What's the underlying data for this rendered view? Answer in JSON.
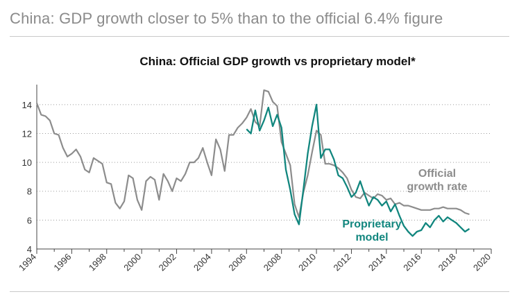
{
  "page_title": "China: GDP growth closer to 5% than to the official 6.4% figure",
  "chart_data": {
    "type": "line",
    "title": "China: Official GDP growth vs proprietary model*",
    "xlabel": "",
    "ylabel": "",
    "xlim": [
      1994,
      2020
    ],
    "ylim": [
      4,
      15
    ],
    "x_ticks": [
      1994,
      1996,
      1998,
      2000,
      2002,
      2004,
      2006,
      2008,
      2010,
      2012,
      2014,
      2016,
      2018,
      2020
    ],
    "x_tick_labels": [
      "1994",
      "1996",
      "1998",
      "2000",
      "2002",
      "2004",
      "2006",
      "2008",
      "2010",
      "2012",
      "2014",
      "2016",
      "2018",
      "2020"
    ],
    "y_ticks": [
      4,
      6,
      8,
      10,
      12,
      14
    ],
    "y_tick_labels": [
      "4",
      "6",
      "8",
      "10",
      "12",
      "14"
    ],
    "grid": "horizontal-dotted",
    "series": [
      {
        "name": "Official growth rate",
        "label_lines": [
          "Official",
          "growth rate"
        ],
        "color": "#8c8c8c",
        "x": [
          1994.0,
          1994.25,
          1994.5,
          1994.75,
          1995.0,
          1995.25,
          1995.5,
          1995.75,
          1996.0,
          1996.25,
          1996.5,
          1996.75,
          1997.0,
          1997.25,
          1997.5,
          1997.75,
          1998.0,
          1998.25,
          1998.5,
          1998.75,
          1999.0,
          1999.25,
          1999.5,
          1999.75,
          2000.0,
          2000.25,
          2000.5,
          2000.75,
          2001.0,
          2001.25,
          2001.5,
          2001.75,
          2002.0,
          2002.25,
          2002.5,
          2002.75,
          2003.0,
          2003.25,
          2003.5,
          2003.75,
          2004.0,
          2004.25,
          2004.5,
          2004.75,
          2005.0,
          2005.25,
          2005.5,
          2005.75,
          2006.0,
          2006.25,
          2006.5,
          2006.75,
          2007.0,
          2007.25,
          2007.5,
          2007.75,
          2008.0,
          2008.25,
          2008.5,
          2008.75,
          2009.0,
          2009.25,
          2009.5,
          2009.75,
          2010.0,
          2010.25,
          2010.5,
          2010.75,
          2011.0,
          2011.25,
          2011.5,
          2011.75,
          2012.0,
          2012.25,
          2012.5,
          2012.75,
          2013.0,
          2013.25,
          2013.5,
          2013.75,
          2014.0,
          2014.25,
          2014.5,
          2014.75,
          2015.0,
          2015.25,
          2015.5,
          2015.75,
          2016.0,
          2016.25,
          2016.5,
          2016.75,
          2017.0,
          2017.25,
          2017.5,
          2017.75,
          2018.0,
          2018.25,
          2018.5,
          2018.75
        ],
        "values": [
          14.1,
          13.3,
          13.2,
          12.9,
          12.0,
          11.9,
          11.0,
          10.4,
          10.6,
          10.9,
          10.4,
          9.5,
          9.3,
          10.3,
          10.1,
          9.9,
          8.6,
          8.5,
          7.2,
          6.8,
          7.3,
          9.1,
          8.9,
          7.4,
          6.7,
          8.7,
          9.0,
          8.8,
          7.4,
          9.2,
          8.7,
          8.0,
          8.9,
          8.7,
          9.2,
          10.0,
          10.0,
          10.3,
          11.0,
          10.0,
          9.1,
          11.6,
          10.9,
          9.4,
          11.9,
          11.9,
          12.4,
          12.7,
          13.1,
          13.7,
          12.8,
          12.5,
          15.0,
          14.9,
          14.2,
          13.9,
          11.4,
          10.6,
          9.8,
          7.1,
          6.2,
          7.9,
          9.1,
          10.7,
          12.2,
          11.9,
          9.9,
          9.9,
          9.8,
          9.6,
          9.3,
          8.9,
          8.1,
          7.6,
          7.5,
          7.9,
          7.7,
          7.5,
          7.8,
          7.7,
          7.4,
          7.5,
          7.1,
          7.2,
          7.0,
          7.0,
          6.9,
          6.8,
          6.7,
          6.7,
          6.7,
          6.8,
          6.8,
          6.9,
          6.8,
          6.8,
          6.8,
          6.7,
          6.5,
          6.4
        ]
      },
      {
        "name": "Proprietary model",
        "label_lines": [
          "Proprietary",
          "model"
        ],
        "color": "#11867e",
        "x": [
          2006.0,
          2006.25,
          2006.5,
          2006.75,
          2007.0,
          2007.25,
          2007.5,
          2007.75,
          2008.0,
          2008.25,
          2008.5,
          2008.75,
          2009.0,
          2009.25,
          2009.5,
          2009.75,
          2010.0,
          2010.25,
          2010.5,
          2010.75,
          2011.0,
          2011.25,
          2011.5,
          2011.75,
          2012.0,
          2012.25,
          2012.5,
          2012.75,
          2013.0,
          2013.25,
          2013.5,
          2013.75,
          2014.0,
          2014.25,
          2014.5,
          2014.75,
          2015.0,
          2015.25,
          2015.5,
          2015.75,
          2016.0,
          2016.25,
          2016.5,
          2016.75,
          2017.0,
          2017.25,
          2017.5,
          2017.75,
          2018.0,
          2018.25,
          2018.5,
          2018.75
        ],
        "values": [
          12.3,
          12.0,
          13.6,
          12.2,
          12.9,
          13.8,
          12.5,
          13.3,
          12.4,
          9.5,
          8.1,
          6.4,
          5.7,
          8.1,
          10.6,
          12.5,
          14.0,
          10.3,
          10.9,
          10.9,
          10.2,
          9.1,
          8.9,
          8.3,
          7.6,
          7.9,
          8.7,
          7.8,
          7.0,
          7.6,
          7.4,
          7.0,
          7.3,
          6.6,
          7.1,
          6.3,
          5.6,
          5.2,
          4.9,
          5.2,
          5.3,
          5.8,
          5.5,
          6.0,
          6.3,
          5.9,
          6.2,
          6.0,
          5.8,
          5.5,
          5.2,
          5.4
        ]
      }
    ]
  }
}
